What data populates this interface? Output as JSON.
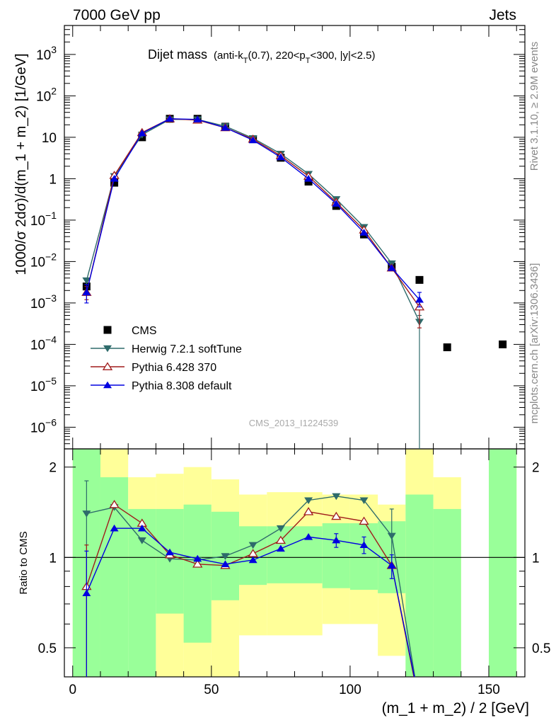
{
  "header": {
    "left": "7000 GeV pp",
    "right": "Jets"
  },
  "side_labels": {
    "rivet": "Rivet 3.1.10, ≥ 2.9M events",
    "mcplots": "mcplots.cern.ch [arXiv:1306.3436]"
  },
  "watermark": "CMS_2013_I1224539",
  "main_title": {
    "title": "Dijet mass",
    "detail_pre": "(anti-k",
    "detail_sub1": "T",
    "detail_mid": "(0.7), 220<p",
    "detail_sub2": "T",
    "detail_post": "<300, |y|<2.5)"
  },
  "colors": {
    "cms": "#000000",
    "herwig": "#2e6b6b",
    "pythia6": "#a01c1c",
    "pythia8": "#0000e0",
    "band_green": "#99ff99",
    "band_yellow": "#ffff99"
  },
  "chart_data": [
    {
      "type": "scatter",
      "panel": "main",
      "ylabel": "1000/σ 2dσ)/d(m_1 + m_2) [1/GeV]",
      "yscale": "log",
      "ylim": [
        3e-07,
        5000
      ],
      "xlim": [
        -3,
        163
      ],
      "yticks": [
        {
          "v": 1000.0,
          "b": "10",
          "e": "3"
        },
        {
          "v": 100.0,
          "b": "10",
          "e": "2"
        },
        {
          "v": 10,
          "b": "10",
          "e": ""
        },
        {
          "v": 1,
          "b": "1",
          "e": ""
        },
        {
          "v": 0.1,
          "b": "10",
          "e": "−1"
        },
        {
          "v": 0.01,
          "b": "10",
          "e": "−2"
        },
        {
          "v": 0.001,
          "b": "10",
          "e": "−3"
        },
        {
          "v": 0.0001,
          "b": "10",
          "e": "−4"
        },
        {
          "v": 1e-05,
          "b": "10",
          "e": "−5"
        },
        {
          "v": 1e-06,
          "b": "10",
          "e": "−6"
        }
      ],
      "legend": {
        "placement": "lower-left",
        "entries": [
          {
            "key": "cms",
            "label": "CMS"
          },
          {
            "key": "herwig",
            "label": "Herwig 7.2.1 softTune"
          },
          {
            "key": "pythia6",
            "label": "Pythia 6.428 370"
          },
          {
            "key": "pythia8",
            "label": "Pythia 8.308 default"
          }
        ]
      },
      "series": [
        {
          "key": "cms",
          "name": "CMS",
          "marker": "square",
          "x": [
            5,
            15,
            25,
            35,
            45,
            55,
            65,
            75,
            85,
            95,
            105,
            115,
            125,
            135,
            155
          ],
          "y": [
            0.0025,
            0.8,
            10,
            28,
            28,
            18,
            9,
            3.2,
            0.85,
            0.22,
            0.045,
            0.0075,
            0.0036,
            8.5e-05,
            0.0001
          ]
        },
        {
          "key": "herwig",
          "name": "Herwig 7.2.1 softTune",
          "marker": "triangle-down",
          "x": [
            5,
            15,
            25,
            35,
            45,
            55,
            65,
            75,
            85,
            95,
            105,
            115,
            125
          ],
          "y": [
            0.0035,
            1.15,
            11.5,
            27,
            27,
            18.5,
            9.5,
            4,
            1.3,
            0.32,
            0.068,
            0.009,
            0.00035
          ],
          "err": [
            null,
            null,
            null,
            null,
            null,
            null,
            null,
            null,
            null,
            null,
            null,
            null,
            [
              1e-08,
              0.0005
            ]
          ]
        },
        {
          "key": "pythia6",
          "name": "Pythia 6.428 370",
          "marker": "triangle-up-open",
          "x": [
            5,
            15,
            25,
            35,
            45,
            55,
            65,
            75,
            85,
            95,
            105,
            115,
            125
          ],
          "y": [
            0.0018,
            1.2,
            13,
            28,
            26,
            17,
            9,
            3.6,
            1.15,
            0.27,
            0.058,
            0.007,
            0.0008
          ],
          "err": [
            [
              0.0012,
              0.0025
            ],
            null,
            null,
            null,
            null,
            null,
            null,
            null,
            null,
            null,
            null,
            null,
            [
              0.00025,
              0.0012
            ]
          ]
        },
        {
          "key": "pythia8",
          "name": "Pythia 8.308 default",
          "marker": "triangle-up",
          "x": [
            5,
            15,
            25,
            35,
            45,
            55,
            65,
            75,
            85,
            95,
            105,
            115,
            125
          ],
          "y": [
            0.0018,
            1.0,
            12.5,
            28,
            27,
            17,
            8.5,
            3.3,
            1.0,
            0.25,
            0.05,
            0.007,
            0.0012
          ],
          "err": [
            [
              0.001,
              0.0028
            ],
            null,
            null,
            null,
            null,
            null,
            null,
            null,
            null,
            null,
            null,
            null,
            [
              0.0008,
              0.0018
            ]
          ]
        }
      ]
    },
    {
      "type": "line",
      "panel": "ratio",
      "ylabel": "Ratio to CMS",
      "xlabel": "(m_1 + m_2) / 2 [GeV]",
      "yscale": "log",
      "ylim": [
        0.4,
        2.3
      ],
      "xlim": [
        -3,
        163
      ],
      "xticks": [
        0,
        50,
        100,
        150
      ],
      "yticks": [
        {
          "v": 0.5,
          "t": "0.5"
        },
        {
          "v": 1,
          "t": "1"
        },
        {
          "v": 2,
          "t": "2"
        }
      ],
      "reference_line": 1,
      "bands": [
        {
          "x0": 0,
          "x1": 10,
          "g": [
            0.4,
            2.3
          ],
          "y": [
            0.4,
            2.3
          ]
        },
        {
          "x0": 10,
          "x1": 20,
          "g": [
            0.4,
            1.85
          ],
          "y": [
            0.4,
            2.3
          ]
        },
        {
          "x0": 20,
          "x1": 30,
          "g": [
            0.4,
            1.45
          ],
          "y": [
            0.72,
            1.85
          ]
        },
        {
          "x0": 30,
          "x1": 40,
          "g": [
            0.65,
            1.45
          ],
          "y": [
            0.4,
            1.9
          ]
        },
        {
          "x0": 40,
          "x1": 50,
          "g": [
            0.52,
            1.5
          ],
          "y": [
            0.4,
            2.0
          ]
        },
        {
          "x0": 50,
          "x1": 60,
          "g": [
            0.72,
            1.42
          ],
          "y": [
            0.4,
            1.82
          ]
        },
        {
          "x0": 60,
          "x1": 70,
          "g": [
            0.81,
            1.27
          ],
          "y": [
            0.55,
            1.62
          ]
        },
        {
          "x0": 70,
          "x1": 80,
          "g": [
            0.82,
            1.27
          ],
          "y": [
            0.55,
            1.65
          ]
        },
        {
          "x0": 80,
          "x1": 90,
          "g": [
            0.82,
            1.27
          ],
          "y": [
            0.55,
            1.65
          ]
        },
        {
          "x0": 90,
          "x1": 100,
          "g": [
            0.79,
            1.3
          ],
          "y": [
            0.6,
            1.62
          ]
        },
        {
          "x0": 100,
          "x1": 110,
          "g": [
            0.78,
            1.3
          ],
          "y": [
            0.6,
            1.62
          ]
        },
        {
          "x0": 110,
          "x1": 120,
          "g": [
            0.76,
            1.32
          ],
          "y": [
            0.47,
            1.5
          ]
        },
        {
          "x0": 120,
          "x1": 130,
          "g": [
            0.4,
            1.62
          ],
          "y": [
            0.4,
            2.3
          ]
        },
        {
          "x0": 130,
          "x1": 140,
          "g": [
            0.4,
            1.45
          ],
          "y": [
            0.4,
            1.85
          ]
        },
        {
          "x0": 150,
          "x1": 160,
          "g": [
            0.4,
            2.3
          ],
          "y": [
            0.4,
            2.3
          ]
        }
      ],
      "series": [
        {
          "key": "herwig",
          "name": "Herwig 7.2.1 softTune",
          "marker": "triangle-down",
          "x": [
            5,
            15,
            25,
            35,
            45,
            55,
            65,
            75,
            85,
            95,
            105,
            115,
            125
          ],
          "y": [
            1.4,
            1.47,
            1.14,
            0.99,
            0.98,
            1.01,
            1.1,
            1.25,
            1.55,
            1.6,
            1.55,
            1.18,
            0.09
          ],
          "err": [
            [
              0.38,
              1.8
            ],
            null,
            null,
            null,
            null,
            null,
            null,
            null,
            null,
            null,
            null,
            [
              1.0,
              1.45
            ],
            null
          ]
        },
        {
          "key": "pythia6",
          "name": "Pythia 6.428 370",
          "marker": "triangle-up-open",
          "x": [
            5,
            15,
            25,
            35,
            45,
            55,
            65,
            75,
            85,
            95,
            105,
            115,
            125
          ],
          "y": [
            0.8,
            1.5,
            1.3,
            1.02,
            0.95,
            0.94,
            1.03,
            1.14,
            1.42,
            1.37,
            1.32,
            0.94,
            0.22
          ],
          "err": [
            [
              0.38,
              1.1
            ],
            null,
            null,
            null,
            null,
            null,
            null,
            null,
            null,
            null,
            null,
            null,
            null
          ]
        },
        {
          "key": "pythia8",
          "name": "Pythia 8.308 default",
          "marker": "triangle-up",
          "x": [
            5,
            15,
            25,
            35,
            45,
            55,
            65,
            75,
            85,
            95,
            105,
            115,
            125
          ],
          "y": [
            0.76,
            1.25,
            1.25,
            1.04,
            0.99,
            0.95,
            0.98,
            1.07,
            1.17,
            1.14,
            1.1,
            0.94,
            0.33
          ],
          "err": [
            [
              0.37,
              1.05
            ],
            null,
            null,
            null,
            null,
            null,
            null,
            null,
            null,
            [
              1.08,
              1.2
            ],
            [
              1.03,
              1.17
            ],
            [
              0.85,
              1.02
            ],
            null
          ]
        }
      ]
    }
  ]
}
